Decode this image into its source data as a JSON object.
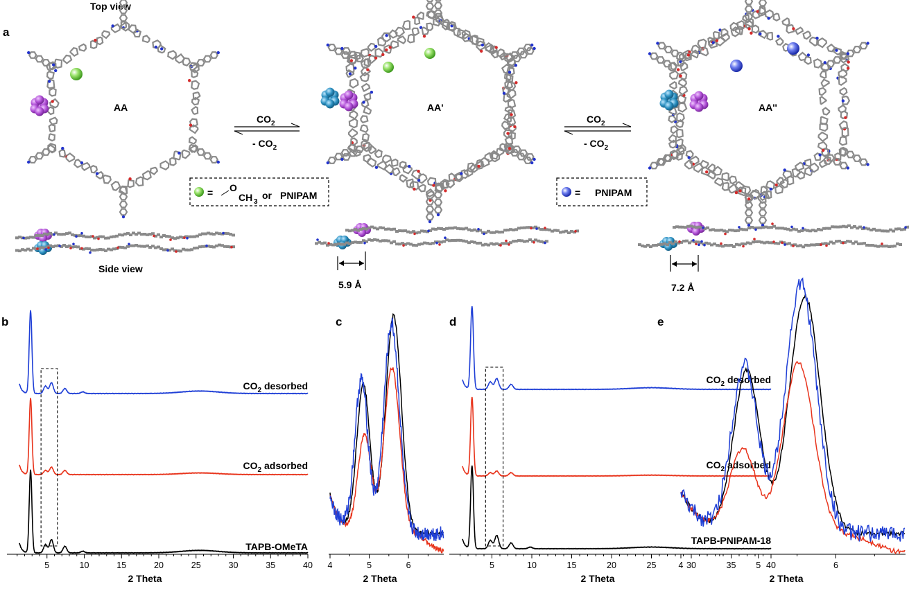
{
  "panel_labels": {
    "a": "a",
    "b": "b",
    "c": "c",
    "d": "d",
    "e": "e"
  },
  "schematic": {
    "top_view": "Top view",
    "side_view": "Side view",
    "stacking_AA": "AA",
    "stacking_AA1": "AA'",
    "stacking_AA2": "AA''",
    "arrow_forward": "CO2",
    "arrow_reverse": "- CO2",
    "legend_green": "= O CH3 or PNIPAM",
    "legend_green_parts": {
      "eq": "=",
      "o": "O",
      "ch": "CH",
      "sub3": "3",
      "or": "or",
      "pnipam": "PNIPAM"
    },
    "legend_blue": "= PNIPAM",
    "legend_blue_parts": {
      "eq": "=",
      "pnipam": "PNIPAM"
    },
    "distance_1": "5.9 Å",
    "distance_2": "7.2 Å",
    "colors": {
      "green_ball": "#7ad14a",
      "blue_ball": "#3b4fe0",
      "purple_cluster": "#b04fd6",
      "teal_cluster": "#2a8fc0",
      "carbon": "#8a8a8a",
      "oxygen": "#d42b2b",
      "nitrogen": "#2233cc"
    }
  },
  "chart_data": [
    {
      "panel": "b",
      "type": "line",
      "xlabel": "2 Theta",
      "xlim": [
        0,
        40
      ],
      "xticks": [
        5,
        10,
        15,
        20,
        25,
        30,
        35,
        40
      ],
      "stack_order": [
        "TAPB-OMeTA",
        "CO2 adsorbed",
        "CO2 desorbed"
      ],
      "series": [
        {
          "name": "CO2 desorbed",
          "color": "#1f3fd6",
          "peaks": [
            [
              2.8,
              1.0
            ],
            [
              4.8,
              0.09
            ],
            [
              5.6,
              0.13
            ],
            [
              7.4,
              0.06
            ],
            [
              9.8,
              0.02
            ],
            [
              25.5,
              0.03
            ]
          ]
        },
        {
          "name": "CO2 adsorbed",
          "color": "#e8341c",
          "peaks": [
            [
              2.8,
              0.92
            ],
            [
              4.8,
              0.05
            ],
            [
              5.6,
              0.09
            ],
            [
              7.4,
              0.05
            ],
            [
              25.5,
              0.02
            ]
          ]
        },
        {
          "name": "TAPB-OMeTA",
          "color": "#000000",
          "peaks": [
            [
              2.8,
              1.0
            ],
            [
              4.8,
              0.1
            ],
            [
              5.6,
              0.16
            ],
            [
              7.4,
              0.08
            ],
            [
              9.8,
              0.02
            ],
            [
              25.5,
              0.03
            ]
          ]
        }
      ],
      "zoom_box": [
        4.2,
        6.4
      ]
    },
    {
      "panel": "c",
      "type": "line",
      "xlabel": "2 Theta",
      "xlim": [
        4,
        6.9
      ],
      "xticks": [
        4,
        5,
        6
      ],
      "series": [
        {
          "color": "#000000",
          "peaks": [
            [
              4.85,
              0.68
            ],
            [
              5.62,
              1.0
            ]
          ]
        },
        {
          "color": "#e8341c",
          "peaks": [
            [
              4.88,
              0.45
            ],
            [
              5.58,
              0.76
            ]
          ]
        },
        {
          "color": "#1f3fd6",
          "peaks": [
            [
              4.8,
              0.7
            ],
            [
              5.57,
              0.96
            ]
          ]
        }
      ]
    },
    {
      "panel": "d",
      "type": "line",
      "xlabel": "2 Theta",
      "xlim": [
        0,
        40
      ],
      "xticks": [
        5,
        10,
        15,
        20,
        25,
        30,
        35,
        40
      ],
      "stack_order": [
        "TAPB-PNIPAM-18",
        "CO2 adsorbed",
        "CO2 desorbed"
      ],
      "series": [
        {
          "name": "CO2 desorbed",
          "color": "#1f3fd6",
          "peaks": [
            [
              2.5,
              1.0
            ],
            [
              4.8,
              0.09
            ],
            [
              5.6,
              0.13
            ],
            [
              7.4,
              0.06
            ],
            [
              25.0,
              0.02
            ]
          ]
        },
        {
          "name": "CO2 adsorbed",
          "color": "#e8341c",
          "peaks": [
            [
              2.5,
              0.95
            ],
            [
              4.8,
              0.04
            ],
            [
              5.6,
              0.06
            ],
            [
              7.4,
              0.04
            ],
            [
              25.0,
              0.01
            ]
          ]
        },
        {
          "name": "TAPB-PNIPAM-18",
          "color": "#000000",
          "peaks": [
            [
              2.5,
              1.0
            ],
            [
              4.8,
              0.1
            ],
            [
              5.6,
              0.16
            ],
            [
              7.4,
              0.07
            ],
            [
              9.8,
              0.02
            ],
            [
              25.0,
              0.02
            ]
          ]
        }
      ],
      "zoom_box": [
        4.2,
        6.4
      ]
    },
    {
      "panel": "e",
      "type": "line",
      "xlabel": "2 Theta",
      "xlim": [
        4,
        6.9
      ],
      "xticks": [
        4,
        5,
        6
      ],
      "series": [
        {
          "color": "#000000",
          "peaks": [
            [
              4.85,
              0.68
            ],
            [
              5.6,
              1.0
            ]
          ]
        },
        {
          "color": "#e8341c",
          "peaks": [
            [
              4.8,
              0.35
            ],
            [
              5.52,
              0.72
            ]
          ]
        },
        {
          "color": "#1f3fd6",
          "peaks": [
            [
              4.82,
              0.7
            ],
            [
              5.55,
              1.05
            ]
          ]
        }
      ]
    }
  ]
}
